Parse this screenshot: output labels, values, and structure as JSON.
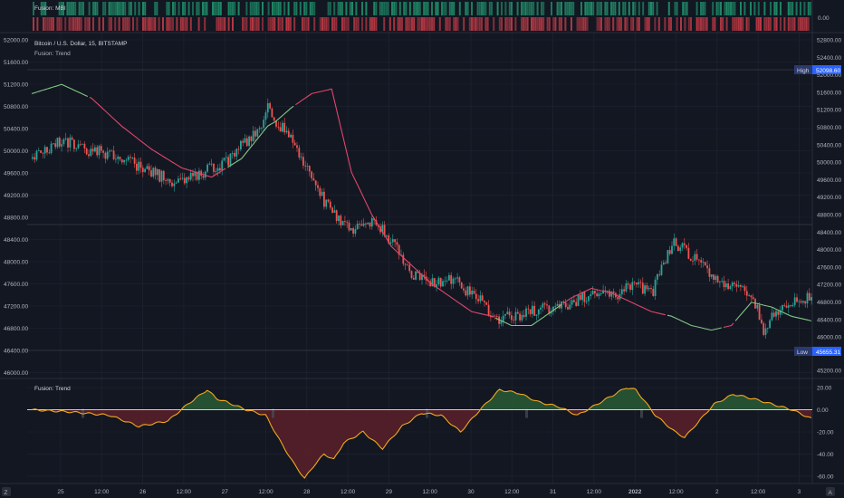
{
  "colors": {
    "background": "#131722",
    "grid": "#1e2230",
    "separator": "#2a2e39",
    "text": "#b2b5be",
    "up_candle": "#26a69a",
    "down_candle": "#ef5350",
    "trend_bull": "#81c784",
    "trend_bear": "#e0466d",
    "osc_line": "#f2a91d",
    "osc_zero": "#f5e6c0",
    "fill_pos": "#2a5a35",
    "fill_neg": "#5a2029",
    "mbi_up": "#1f8f6a",
    "mbi_down": "#c03a45",
    "high_label_bg": "#2a3a6e",
    "low_label_bg": "#2a3a6e"
  },
  "mbi_panel": {
    "title": "Fusion: MBI",
    "axis_tick": "0.00"
  },
  "main_panel": {
    "symbol_title": "Bitcoin / U.S. Dollar, 15, BITSTAMP",
    "indicator_title": "Fusion: Trend",
    "left_ticks": [
      "52000.00",
      "51600.00",
      "51200.00",
      "50800.00",
      "50400.00",
      "50000.00",
      "49600.00",
      "49200.00",
      "48800.00",
      "48400.00",
      "48000.00",
      "47600.00",
      "47200.00",
      "46800.00",
      "46400.00",
      "46000.00"
    ],
    "right_ticks": [
      "52800.00",
      "52400.00",
      "52000.00",
      "51600.00",
      "51200.00",
      "50800.00",
      "50400.00",
      "50000.00",
      "49600.00",
      "49200.00",
      "48800.00",
      "48400.00",
      "48000.00",
      "47600.00",
      "47200.00",
      "46800.00",
      "46400.00",
      "46000.00",
      "45200.00"
    ],
    "high_label": "High",
    "high_value": "52098.60",
    "low_label": "Low",
    "low_value": "45655.31"
  },
  "osc_panel": {
    "title": "Fusion: Trend",
    "ticks": [
      "20.00",
      "0.00",
      "-20.00",
      "-40.00",
      "-60.00"
    ]
  },
  "x_axis": {
    "labels": [
      "25",
      "12:00",
      "26",
      "12:00",
      "27",
      "12:00",
      "28",
      "12:00",
      "29",
      "12:00",
      "30",
      "12:00",
      "31",
      "12:00",
      "2022",
      "12:00",
      "2",
      "12:00",
      "3"
    ],
    "left_badge": "Z",
    "right_badge": "A"
  },
  "chart_data": {
    "type": "candlestick",
    "symbol": "Bitcoin / U.S. Dollar",
    "interval": "15",
    "exchange": "BITSTAMP",
    "ylim": [
      45655,
      52900
    ],
    "marked_high": 52098.6,
    "marked_low": 45655.31,
    "price_path": {
      "x": [
        0,
        15,
        25,
        40,
        55,
        70,
        80,
        90,
        100,
        105,
        110,
        115,
        118,
        122,
        130,
        140,
        150,
        160,
        170,
        180,
        190,
        200,
        210,
        225,
        230,
        240,
        250,
        260,
        270,
        280,
        290,
        300,
        310,
        320,
        330,
        340,
        350,
        360,
        366,
        370,
        380,
        390
      ],
      "close": [
        50300,
        50700,
        50500,
        50400,
        50100,
        49800,
        49900,
        50100,
        50300,
        50600,
        50800,
        51000,
        51500,
        51100,
        50700,
        49800,
        49100,
        48700,
        49000,
        48500,
        47800,
        47600,
        47700,
        47200,
        46800,
        46900,
        47000,
        47100,
        47200,
        47400,
        47300,
        47600,
        47400,
        48500,
        48200,
        47800,
        47500,
        47400,
        46500,
        47000,
        47200,
        47300
      ]
    },
    "trend_line": {
      "x": [
        0,
        15,
        30,
        45,
        60,
        75,
        90,
        105,
        118,
        122,
        130,
        140,
        150,
        160,
        170,
        180,
        190,
        200,
        210,
        220,
        230,
        240,
        250,
        260,
        270,
        280,
        290,
        300,
        310,
        320,
        330,
        340,
        350,
        360,
        370,
        380,
        390
      ],
      "value": [
        51700,
        51900,
        51600,
        51000,
        50500,
        50100,
        49900,
        50300,
        51000,
        51100,
        51400,
        51700,
        51800,
        50000,
        49100,
        48400,
        48000,
        47600,
        47300,
        47000,
        46900,
        46700,
        46700,
        47000,
        47300,
        47500,
        47400,
        47200,
        47000,
        46900,
        46700,
        46600,
        46700,
        47200,
        47100,
        46900,
        46800
      ],
      "bull_segments": [
        [
          0,
          28
        ],
        [
          98,
          131
        ],
        [
          232,
          265
        ],
        [
          318,
          345
        ],
        [
          352,
          395
        ]
      ]
    },
    "oscillator": {
      "x": [
        0,
        20,
        40,
        55,
        70,
        80,
        90,
        95,
        100,
        110,
        120,
        128,
        135,
        140,
        145,
        150,
        155,
        160,
        170,
        180,
        190,
        200,
        210,
        220,
        230,
        240,
        250,
        260,
        270,
        280,
        290,
        300,
        305,
        310,
        320,
        330,
        335,
        340,
        350,
        360,
        370,
        380,
        390,
        400
      ],
      "value": [
        0,
        -2,
        -5,
        -15,
        -10,
        5,
        18,
        10,
        7,
        0,
        -5,
        -30,
        -50,
        -62,
        -50,
        -40,
        -45,
        -30,
        -20,
        -35,
        -15,
        -3,
        -5,
        -20,
        0,
        18,
        15,
        7,
        3,
        -5,
        5,
        15,
        20,
        18,
        -5,
        -20,
        -25,
        -15,
        5,
        14,
        10,
        5,
        0,
        -8
      ]
    },
    "osc_ylim": [
      -65,
      25
    ],
    "mbi": "alternating bullish/bearish heat strip"
  }
}
